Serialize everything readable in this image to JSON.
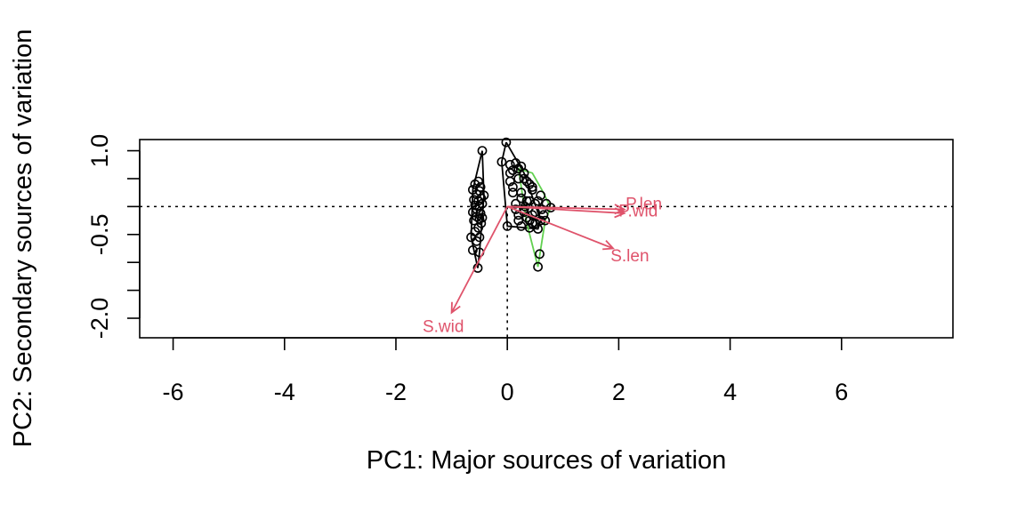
{
  "chart_data": {
    "type": "scatter",
    "title": "",
    "xlabel": "PC1: Major sources of variation",
    "ylabel": "PC2: Secondary sources of variation",
    "xlim": [
      -6.6,
      8.0
    ],
    "ylim": [
      -2.35,
      1.2
    ],
    "x_ticks": [
      -6,
      -4,
      -2,
      0,
      2,
      4,
      6
    ],
    "x_tick_labels": [
      "-6",
      "-4",
      "-2",
      "0",
      "2",
      "4",
      "6"
    ],
    "y_ticks": [
      -2.0,
      -1.5,
      -1.0,
      -0.5,
      0.0,
      0.5,
      1.0
    ],
    "y_tick_labels": [
      "-2.0",
      "",
      "",
      "-0.5",
      "",
      "",
      "1.0"
    ],
    "reference_lines": {
      "h": 0,
      "v": 0,
      "style": "dotted"
    },
    "colors": {
      "points": "#000000",
      "loadings": "#DF536B",
      "hull_2": "#61D04F"
    },
    "series": [
      {
        "color": "#000000",
        "points": [
          [
            -0.45,
            1.0
          ],
          [
            -0.52,
            0.45
          ],
          [
            -0.58,
            0.4
          ],
          [
            -0.48,
            0.35
          ],
          [
            -0.62,
            0.3
          ],
          [
            -0.5,
            0.28
          ],
          [
            -0.55,
            0.22
          ],
          [
            -0.47,
            0.15
          ],
          [
            -0.6,
            0.12
          ],
          [
            -0.52,
            0.1
          ],
          [
            -0.45,
            0.05
          ],
          [
            -0.58,
            0.02
          ],
          [
            -0.5,
            0.0
          ],
          [
            -0.55,
            -0.05
          ],
          [
            -0.62,
            -0.1
          ],
          [
            -0.48,
            -0.12
          ],
          [
            -0.55,
            -0.18
          ],
          [
            -0.5,
            -0.22
          ],
          [
            -0.6,
            -0.25
          ],
          [
            -0.47,
            -0.3
          ],
          [
            -0.52,
            -0.38
          ],
          [
            -0.58,
            -0.45
          ],
          [
            -0.5,
            -0.55
          ],
          [
            -0.55,
            -0.62
          ],
          [
            -0.62,
            -0.78
          ],
          [
            -0.5,
            -0.82
          ],
          [
            -0.53,
            -1.1
          ],
          [
            -0.45,
            -0.2
          ],
          [
            -0.65,
            -0.55
          ],
          [
            -0.42,
            0.2
          ]
        ],
        "hull": [
          [
            -0.45,
            1.0
          ],
          [
            -0.42,
            0.2
          ],
          [
            -0.5,
            -0.82
          ],
          [
            -0.53,
            -1.1
          ],
          [
            -0.65,
            -0.55
          ],
          [
            -0.62,
            0.3
          ],
          [
            -0.45,
            1.0
          ]
        ]
      },
      {
        "color": "#000000",
        "points": [
          [
            -0.02,
            1.15
          ],
          [
            -0.1,
            0.8
          ],
          [
            0.05,
            0.75
          ],
          [
            0.15,
            0.78
          ],
          [
            0.1,
            0.65
          ],
          [
            0.25,
            0.72
          ],
          [
            0.3,
            0.6
          ],
          [
            0.2,
            0.5
          ],
          [
            0.05,
            0.45
          ],
          [
            0.35,
            0.45
          ],
          [
            0.45,
            0.3
          ],
          [
            0.1,
            0.25
          ],
          [
            0.25,
            0.15
          ],
          [
            0.4,
            0.1
          ],
          [
            0.15,
            0.05
          ],
          [
            0.3,
            -0.05
          ],
          [
            0.5,
            -0.1
          ],
          [
            0.2,
            -0.15
          ],
          [
            0.35,
            -0.2
          ],
          [
            0.6,
            -0.25
          ],
          [
            0.45,
            -0.3
          ],
          [
            0.25,
            -0.35
          ],
          [
            0.4,
            -0.38
          ],
          [
            0.55,
            -0.4
          ],
          [
            0.0,
            -0.35
          ],
          [
            0.1,
            0.35
          ],
          [
            0.2,
            -0.25
          ],
          [
            0.32,
            0.0
          ],
          [
            0.15,
            -0.05
          ],
          [
            0.05,
            0.6
          ]
        ],
        "hull": [
          [
            -0.02,
            1.15
          ],
          [
            0.3,
            0.6
          ],
          [
            0.6,
            -0.25
          ],
          [
            0.55,
            -0.4
          ],
          [
            0.0,
            -0.35
          ],
          [
            -0.1,
            0.8
          ],
          [
            -0.02,
            1.15
          ]
        ]
      },
      {
        "color": "#000000",
        "hull_color": "#61D04F",
        "points": [
          [
            0.2,
            0.68
          ],
          [
            0.3,
            0.5
          ],
          [
            0.45,
            0.35
          ],
          [
            0.6,
            0.2
          ],
          [
            0.7,
            0.05
          ],
          [
            0.78,
            -0.02
          ],
          [
            0.65,
            -0.15
          ],
          [
            0.5,
            -0.3
          ],
          [
            0.58,
            -0.85
          ],
          [
            0.55,
            -1.08
          ],
          [
            0.4,
            -0.25
          ],
          [
            0.35,
            0.1
          ],
          [
            0.25,
            0.25
          ],
          [
            0.5,
            0.05
          ],
          [
            0.62,
            -0.05
          ],
          [
            0.45,
            -0.15
          ],
          [
            0.3,
            -0.1
          ],
          [
            0.55,
            0.1
          ],
          [
            0.4,
            0.4
          ],
          [
            0.68,
            -0.25
          ]
        ],
        "hull": [
          [
            0.2,
            0.68
          ],
          [
            0.45,
            0.6
          ],
          [
            0.62,
            0.3
          ],
          [
            0.78,
            -0.02
          ],
          [
            0.68,
            -0.25
          ],
          [
            0.55,
            -1.08
          ],
          [
            0.35,
            -0.3
          ],
          [
            0.2,
            0.68
          ]
        ]
      }
    ],
    "loadings": [
      {
        "label": "P.len",
        "x": 2.1,
        "y": -0.05
      },
      {
        "label": "P.wid",
        "x": 2.1,
        "y": -0.12
      },
      {
        "label": "S.len",
        "x": 1.9,
        "y": -0.75
      },
      {
        "label": "S.wid",
        "x": -1.0,
        "y": -1.9
      }
    ],
    "loading_label_positions": [
      {
        "label": "P.len",
        "x": 2.45,
        "y": -0.05
      },
      {
        "label": "P.wid",
        "x": 2.35,
        "y": -0.18
      },
      {
        "label": "S.len",
        "x": 2.2,
        "y": -0.98
      },
      {
        "label": "S.wid",
        "x": -1.15,
        "y": -2.25
      }
    ]
  }
}
